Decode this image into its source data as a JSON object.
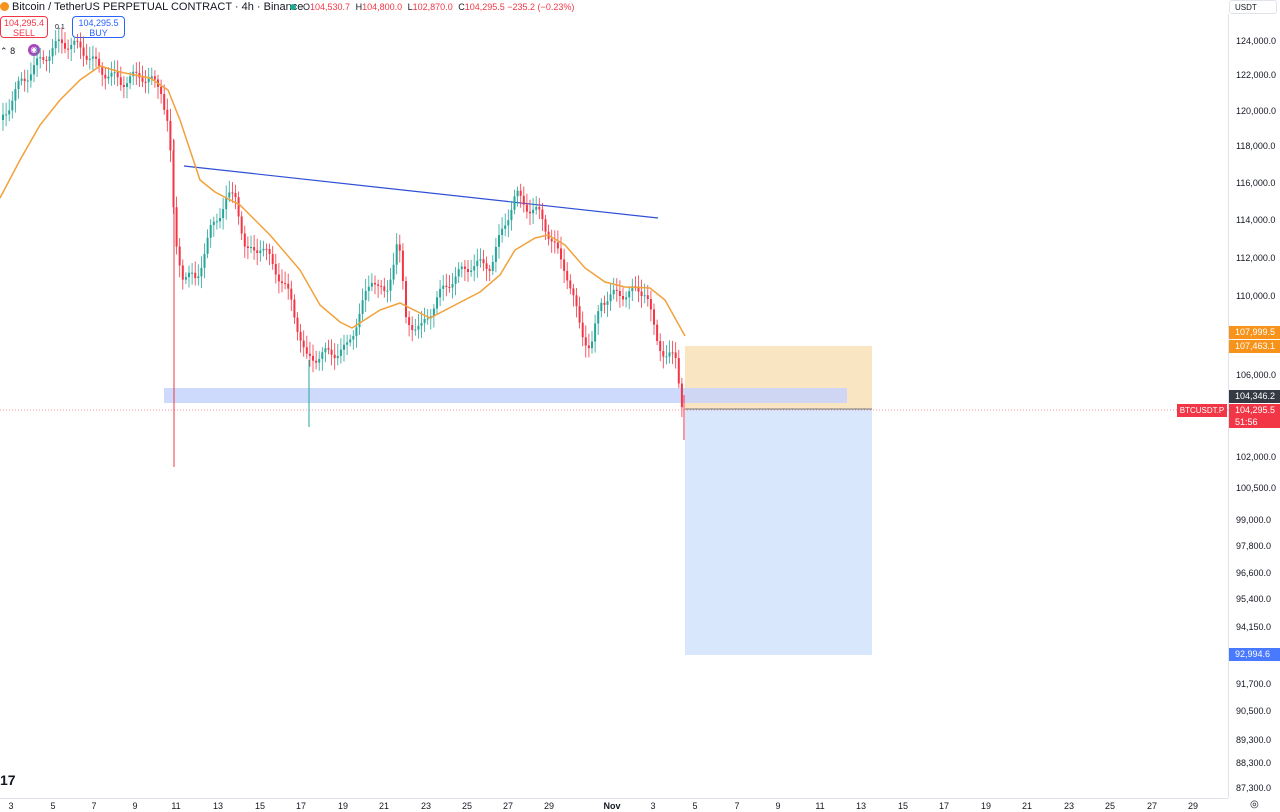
{
  "header": {
    "symbol_line": "Bitcoin / TetherUS PERPETUAL CONTRACT · 4h · Binance",
    "ohlc": {
      "o_label": "O",
      "o": "104,530.7",
      "h_label": "H",
      "h": "104,800.0",
      "l_label": "L",
      "l": "102,870.0",
      "c_label": "C",
      "c": "104,295.5",
      "change": "−235.2 (−0.23%)"
    }
  },
  "trade": {
    "sell_price": "104,295.4",
    "sell_label": "SELL",
    "buy_price": "104,295.5",
    "buy_label": "BUY",
    "spread": "0.1"
  },
  "indicator_count": "8",
  "currency": "USDT",
  "price_axis": [
    "124,000.0",
    "122,000.0",
    "120,000.0",
    "118,000.0",
    "116,000.0",
    "114,000.0",
    "112,000.0",
    "110,000.0",
    "106,000.0",
    "102,000.0",
    "100,500.0",
    "99,000.0",
    "97,800.0",
    "96,600.0",
    "95,400.0",
    "94,150.0",
    "91,700.0",
    "90,500.0",
    "89,300.0",
    "88,300.0",
    "87,300.0"
  ],
  "price_tags": {
    "tp1": "107,999.5",
    "tp2": "107,463.1",
    "entry": "104,346.2",
    "last": "104,295.5",
    "countdown": "51:56",
    "sl": "92,994.6",
    "symbol": "BTCUSDT.P"
  },
  "time_axis": [
    "3",
    "5",
    "7",
    "9",
    "11",
    "13",
    "15",
    "17",
    "19",
    "21",
    "23",
    "25",
    "27",
    "29",
    "Nov",
    "3",
    "5",
    "7",
    "9",
    "11",
    "13",
    "15",
    "17",
    "19",
    "21",
    "23",
    "25",
    "27",
    "29"
  ],
  "colors": {
    "up": "#26a69a",
    "down": "#f23645",
    "ema": "#f2a13b",
    "trendline": "#2f4fd6",
    "zone": "#c5d4fb",
    "target": "#f9e0b8",
    "stop": "#d6e6fb"
  },
  "icons": {
    "logo": "tradingview-logo-icon",
    "settings": "settings-icon",
    "bitcoin": "bitcoin-icon"
  }
}
